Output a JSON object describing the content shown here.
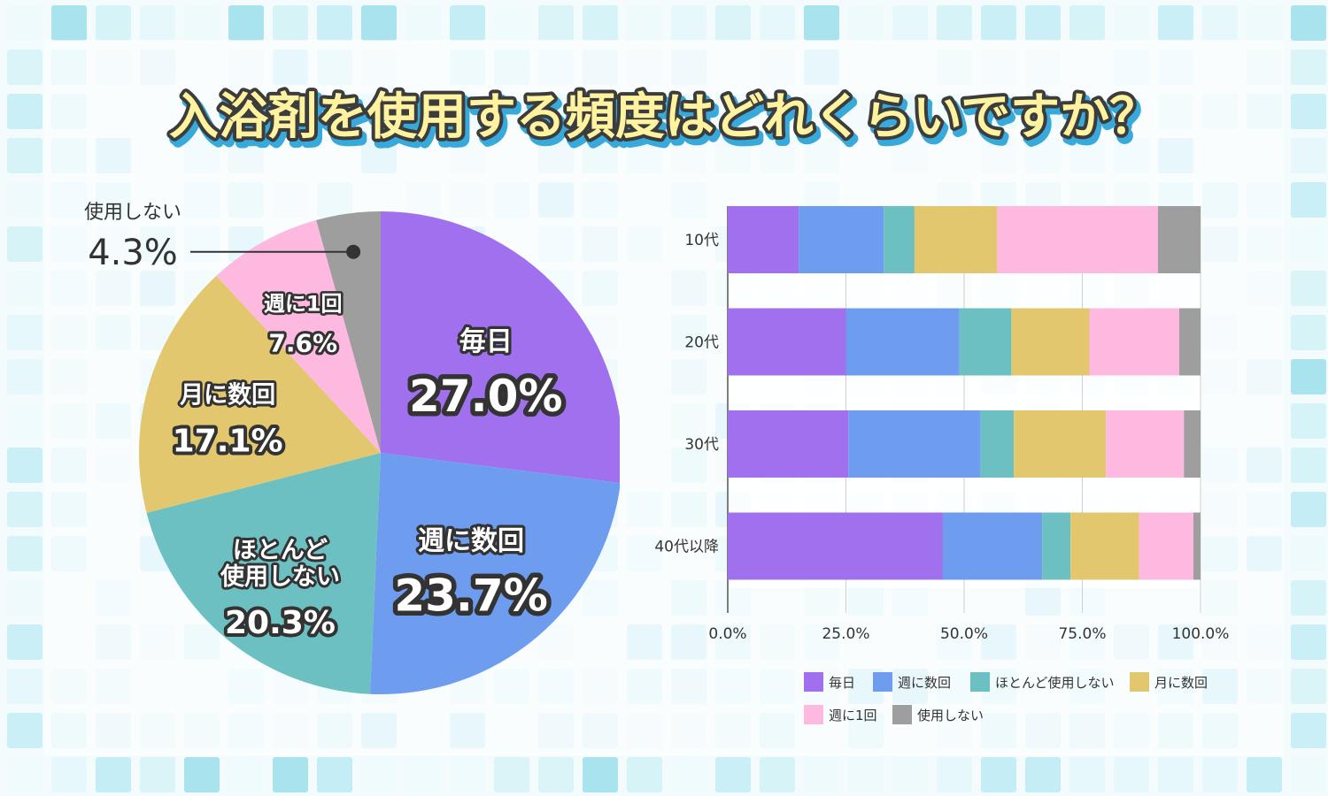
{
  "title": "入浴剤を使用する頻度はどれくらいですか？",
  "colors": {
    "毎日": "#a070ee",
    "週に数回": "#6e9cee",
    "ほとんど使用しない": "#6dc0c2",
    "月に数回": "#e2c76f",
    "週に1回": "#fdb9df",
    "使用しない": "#9e9e9e"
  },
  "chart_data": [
    {
      "type": "pie",
      "title": "",
      "slices": [
        {
          "label": "毎日",
          "value": 27.0,
          "value_text": "27.0%",
          "label_lines": [
            "毎日"
          ]
        },
        {
          "label": "週に数回",
          "value": 23.7,
          "value_text": "23.7%",
          "label_lines": [
            "週に数回"
          ]
        },
        {
          "label": "ほとんど使用しない",
          "value": 20.3,
          "value_text": "20.3%",
          "label_lines": [
            "ほとんど",
            "使用しない"
          ]
        },
        {
          "label": "月に数回",
          "value": 17.1,
          "value_text": "17.1%",
          "label_lines": [
            "月に数回"
          ]
        },
        {
          "label": "週に1回",
          "value": 7.6,
          "value_text": "7.6%",
          "label_lines": [
            "週に1回"
          ]
        },
        {
          "label": "使用しない",
          "value": 4.3,
          "value_text": "4.3%",
          "label_lines": [
            "使用しない"
          ]
        }
      ]
    },
    {
      "type": "bar",
      "orientation": "horizontal",
      "stacked": "percent",
      "categories": [
        "10代",
        "20代",
        "30代",
        "40代以降"
      ],
      "series": [
        {
          "name": "毎日",
          "values": [
            15,
            25,
            25.5,
            45.5
          ]
        },
        {
          "name": "週に数回",
          "values": [
            18,
            24,
            28,
            21
          ]
        },
        {
          "name": "ほとんど使用しない",
          "values": [
            6.5,
            11,
            7,
            6
          ]
        },
        {
          "name": "月に数回",
          "values": [
            17.5,
            16.5,
            19.5,
            14.5
          ]
        },
        {
          "name": "週に1回",
          "values": [
            34,
            19,
            16.5,
            11.5
          ]
        },
        {
          "name": "使用しない",
          "values": [
            9,
            4.5,
            3.5,
            1.5
          ]
        }
      ],
      "xlim": [
        0,
        100
      ],
      "ticks": [
        "0.0%",
        "25.0%",
        "50.0%",
        "75.0%",
        "100.0%"
      ],
      "grid": true,
      "legend": "bottom"
    }
  ]
}
